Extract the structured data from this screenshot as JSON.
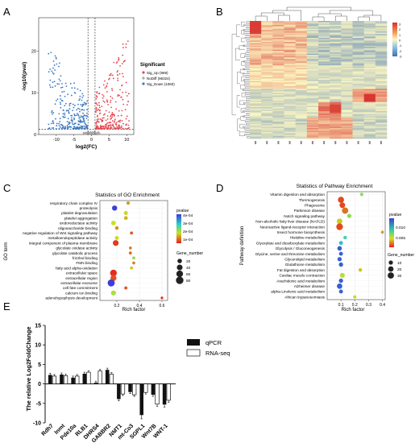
{
  "panels": {
    "A": "A",
    "B": "B",
    "C": "C",
    "D": "D",
    "E": "E"
  },
  "chart_data": [
    {
      "panel": "A",
      "type": "scatter",
      "xlabel": "log2(FC)",
      "ylabel": "-log10(pval)",
      "xlim": [
        -15,
        12
      ],
      "ylim": [
        0,
        28
      ],
      "x_ticks": [
        -10,
        -5,
        0,
        5,
        10
      ],
      "y_ticks": [
        0,
        10,
        20
      ],
      "legend_title": "Significant",
      "legend_position": "right",
      "vlines": [
        -1,
        1
      ],
      "hline": 1.3,
      "series": [
        {
          "name": "Sig_Up (969)",
          "color": "#e8474f"
        },
        {
          "name": "NoDiff (96324)",
          "color": "#a6a6a6"
        },
        {
          "name": "Sig_Down (1060)",
          "color": "#3a78c2"
        }
      ]
    },
    {
      "panel": "B",
      "type": "heatmap",
      "n_columns": 12,
      "color_scale": [
        -3,
        3
      ],
      "scale_ticks": [
        3,
        2,
        1,
        0,
        -1,
        -2,
        -3
      ],
      "colors": {
        "low": "#3b6fb6",
        "mid": "#fdf7c2",
        "high": "#d7302a"
      }
    },
    {
      "panel": "C",
      "type": "scatter",
      "title": "Statistics of GO Enrichment",
      "xlabel": "Rich factor",
      "ylabel": "GO term",
      "xlim": [
        0.05,
        0.65
      ],
      "x_ticks": [
        0.2,
        0.4,
        0.6
      ],
      "categories": [
        "respiratory chain complex IV",
        "proteolysis",
        "platelet degranulation",
        "platelet aggregation",
        "oxidoreductase activity",
        "oligosaccharide binding",
        "negative regulation of Wnt signaling pathway",
        "metalloendopeptidase activity",
        "integral component of plasma membrane",
        "glycolate oxidase activity",
        "glycolate catabolic process",
        "frizzled binding",
        "FMN binding",
        "fatty acid alpha-oxidation",
        "extracellular space",
        "extracellular region",
        "extracellular exosome",
        "cell fate commitment",
        "calcium ion binding",
        "adenohypophysis development"
      ],
      "x": [
        0.3,
        0.18,
        0.28,
        0.28,
        0.17,
        0.2,
        0.33,
        0.2,
        0.19,
        0.32,
        0.32,
        0.35,
        0.35,
        0.33,
        0.17,
        0.17,
        0.15,
        0.28,
        0.17,
        0.6
      ],
      "pvalue": [
        0.0001,
        0.00045,
        0.00015,
        0.00012,
        0.00016,
        9e-05,
        5e-05,
        0.00016,
        2e-05,
        8e-05,
        6e-05,
        0.0002,
        8e-05,
        0.00014,
        1e-05,
        4e-05,
        0.00045,
        4e-05,
        0.00018,
        1e-05
      ],
      "gene_number": [
        8,
        30,
        15,
        12,
        22,
        10,
        6,
        14,
        40,
        5,
        5,
        6,
        5,
        6,
        60,
        45,
        70,
        6,
        28,
        3
      ],
      "color_legend_title": "pvalue",
      "color_ticks": [
        "4e-04",
        "3e-04",
        "2e-04",
        "1e-04"
      ],
      "size_legend_title": "Gene_number",
      "size_ticks": [
        20,
        40,
        60,
        80
      ]
    },
    {
      "panel": "D",
      "type": "scatter",
      "title": "Statistics of Pathway Enrichment",
      "xlabel": "Rich factor",
      "ylabel": "Pathway definition",
      "xlim": [
        0.0,
        0.42
      ],
      "x_ticks": [
        0.1,
        0.2,
        0.3,
        0.4
      ],
      "categories": [
        "Vitamin digestion and absorption",
        "Thermogenesis",
        "Phagosome",
        "Parkinson disease",
        "Notch signaling pathway",
        "Non-alcoholic fatty liver disease (NAFLD)",
        "Neuroactive ligand-receptor interaction",
        "Insect hormone biosynthesis",
        "Histidine metabolism",
        "Glyoxylate and dicarboxylate metabolism",
        "Glycolysis / Gluconeogenesis",
        "Glycine, serine and threonine metabolism",
        "Glycerolipid metabolism",
        "Glutathione metabolism",
        "Fat digestion and absorption",
        "Cardiac muscle contraction",
        "Arachidonic acid metabolism",
        "Alzheimer disease",
        "alpha-Linolenic acid metabolism",
        "African trypanosomiasis"
      ],
      "x": [
        0.25,
        0.1,
        0.11,
        0.13,
        0.16,
        0.09,
        0.09,
        0.4,
        0.13,
        0.1,
        0.09,
        0.1,
        0.09,
        0.1,
        0.24,
        0.11,
        0.1,
        0.09,
        0.1,
        0.2
      ],
      "pvalue": [
        0.006,
        0.001,
        0.001,
        0.002,
        0.006,
        0.004,
        0.001,
        0.003,
        0.008,
        0.009,
        0.012,
        0.012,
        0.012,
        0.012,
        0.004,
        0.005,
        0.012,
        0.012,
        0.012,
        0.005
      ],
      "gene_number": [
        5,
        28,
        22,
        30,
        10,
        22,
        35,
        3,
        6,
        8,
        12,
        8,
        10,
        10,
        6,
        15,
        10,
        20,
        8,
        4
      ],
      "color_legend_title": "pvalue",
      "color_ticks": [
        "0.010",
        "0.005"
      ],
      "size_legend_title": "Gene_number",
      "size_ticks": [
        10,
        20,
        30
      ]
    },
    {
      "panel": "E",
      "type": "bar",
      "ylabel": "The relative Log2FoldChange",
      "ylim": [
        -10,
        15
      ],
      "y_ticks": [
        -10,
        -5,
        0,
        5,
        10,
        15
      ],
      "legend_position": "right",
      "categories": [
        "Rdh7",
        "Inmt",
        "Pde10a",
        "RLB1",
        "DHRS4",
        "GABBR2",
        "NMT1",
        "mt-Co3",
        "SGPL1",
        "Wnt7B",
        "WNT-1"
      ],
      "series": [
        {
          "name": "qPCR",
          "values": [
            2.3,
            2.4,
            1.6,
            2.6,
            0.3,
            3.6,
            -3.9,
            -2.1,
            -8.0,
            -2.8,
            -5.3
          ]
        },
        {
          "name": "RNA-seq",
          "values": [
            2.0,
            2.1,
            2.0,
            3.0,
            3.3,
            2.5,
            -2.6,
            -2.8,
            -2.2,
            -5.2,
            -4.2
          ]
        }
      ]
    }
  ]
}
